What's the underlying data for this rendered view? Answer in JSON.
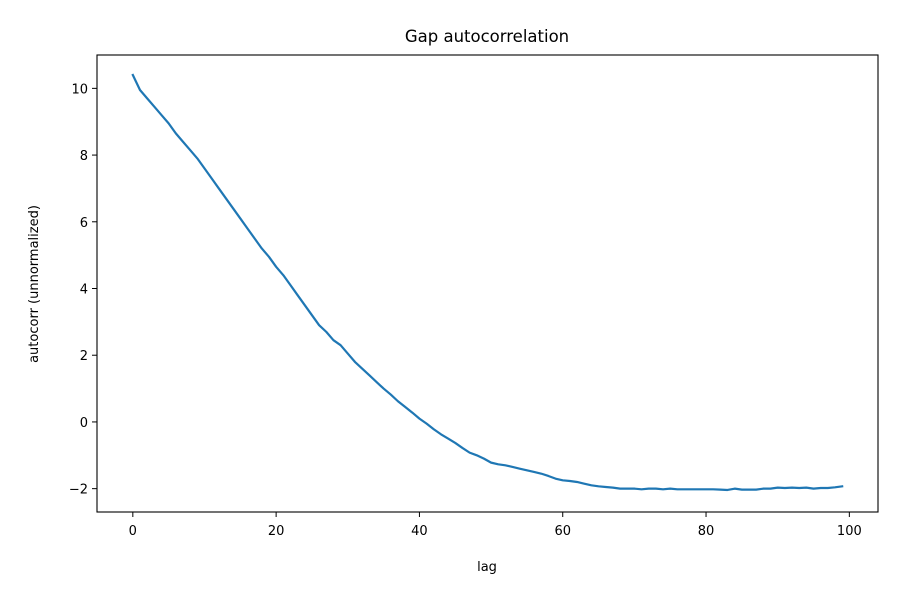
{
  "chart_data": {
    "type": "line",
    "title": "Gap autocorrelation",
    "xlabel": "lag",
    "ylabel": "autocorr (unnormalized)",
    "xlim": [
      -5,
      104
    ],
    "ylim": [
      -2.7,
      11.0
    ],
    "xticks": [
      0,
      20,
      40,
      60,
      80,
      100
    ],
    "yticks": [
      -2,
      0,
      2,
      4,
      6,
      8,
      10
    ],
    "grid": false,
    "legend": "none",
    "colors": {
      "line": "#1f77b4",
      "axes": "#000000",
      "background": "#ffffff"
    },
    "series": [
      {
        "x": [
          0,
          1,
          2,
          3,
          4,
          5,
          6,
          7,
          8,
          9,
          10,
          11,
          12,
          13,
          14,
          15,
          16,
          17,
          18,
          19,
          20,
          21,
          22,
          23,
          24,
          25,
          26,
          27,
          28,
          29,
          30,
          31,
          32,
          33,
          34,
          35,
          36,
          37,
          38,
          39,
          40,
          41,
          42,
          43,
          44,
          45,
          46,
          47,
          48,
          49,
          50,
          51,
          52,
          53,
          54,
          55,
          56,
          57,
          58,
          59,
          60,
          61,
          62,
          63,
          64,
          65,
          66,
          67,
          68,
          69,
          70,
          71,
          72,
          73,
          74,
          75,
          76,
          77,
          78,
          79,
          80,
          81,
          82,
          83,
          84,
          85,
          86,
          87,
          88,
          89,
          90,
          91,
          92,
          93,
          94,
          95,
          96,
          97,
          98,
          99
        ],
        "y": [
          10.4,
          9.95,
          9.7,
          9.45,
          9.2,
          8.95,
          8.65,
          8.4,
          8.15,
          7.9,
          7.6,
          7.3,
          7.0,
          6.7,
          6.4,
          6.1,
          5.8,
          5.5,
          5.2,
          4.95,
          4.65,
          4.4,
          4.1,
          3.8,
          3.5,
          3.2,
          2.9,
          2.7,
          2.45,
          2.3,
          2.05,
          1.8,
          1.6,
          1.4,
          1.2,
          1.0,
          0.82,
          0.62,
          0.45,
          0.28,
          0.1,
          -0.05,
          -0.22,
          -0.37,
          -0.5,
          -0.63,
          -0.78,
          -0.92,
          -1.0,
          -1.1,
          -1.22,
          -1.27,
          -1.3,
          -1.35,
          -1.4,
          -1.45,
          -1.5,
          -1.55,
          -1.62,
          -1.7,
          -1.75,
          -1.77,
          -1.8,
          -1.85,
          -1.9,
          -1.93,
          -1.95,
          -1.97,
          -2.0,
          -2.0,
          -2.0,
          -2.02,
          -2.0,
          -2.0,
          -2.02,
          -2.0,
          -2.02,
          -2.02,
          -2.02,
          -2.02,
          -2.02,
          -2.02,
          -2.03,
          -2.04,
          -2.0,
          -2.03,
          -2.03,
          -2.03,
          -2.0,
          -2.0,
          -1.97,
          -1.98,
          -1.97,
          -1.98,
          -1.97,
          -2.0,
          -1.98,
          -1.98,
          -1.96,
          -1.93
        ]
      }
    ]
  }
}
